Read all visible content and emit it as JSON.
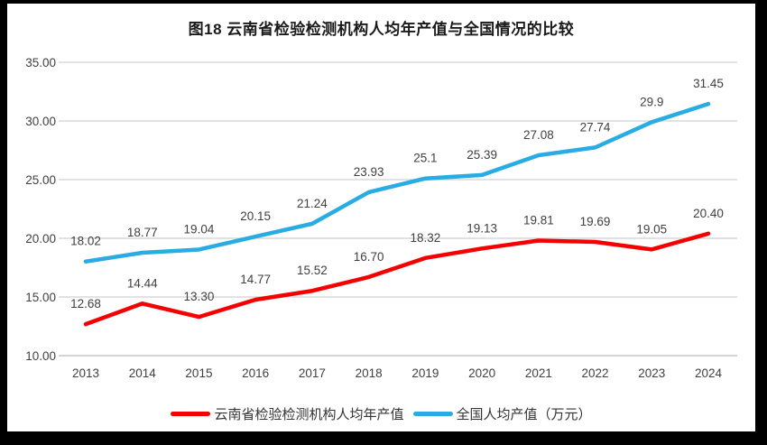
{
  "frame": {
    "background_color": "#000000",
    "card_background_color": "#FFFFFF"
  },
  "chart_data": {
    "type": "line",
    "title": "图18  云南省检验检测机构人均年产值与全国情况的比较",
    "categories": [
      "2013",
      "2014",
      "2015",
      "2016",
      "2017",
      "2018",
      "2019",
      "2020",
      "2021",
      "2022",
      "2023",
      "2024"
    ],
    "series": [
      {
        "key": "yunnan",
        "name": "云南省检验检测机构人均年产值",
        "color": "#F40000",
        "values": [
          12.68,
          14.44,
          13.3,
          14.77,
          15.52,
          16.7,
          18.32,
          19.13,
          19.81,
          19.69,
          19.05,
          20.4
        ],
        "labels": [
          "12.68",
          "14.44",
          "13.30",
          "14.77",
          "15.52",
          "16.70",
          "18.32",
          "19.13",
          "19.81",
          "19.69",
          "19.05",
          "20.40"
        ]
      },
      {
        "key": "national",
        "name": "全国人均产值（万元）",
        "color": "#29ACE3",
        "values": [
          18.02,
          18.77,
          19.04,
          20.15,
          21.24,
          23.93,
          25.1,
          25.39,
          27.08,
          27.74,
          29.9,
          31.45
        ],
        "labels": [
          "18.02",
          "18.77",
          "19.04",
          "20.15",
          "21.24",
          "23.93",
          "25.1",
          "25.39",
          "27.08",
          "27.74",
          "29.9",
          "31.45"
        ]
      }
    ],
    "xlabel": "",
    "ylabel": "",
    "ylim": [
      10,
      35
    ],
    "ytick_values": [
      35,
      30,
      25,
      20,
      15,
      10
    ],
    "ytick_labels": [
      "35.00",
      "30.00",
      "25.00",
      "20.00",
      "15.00",
      "10.00"
    ],
    "grid": "horizontal-only",
    "legend_position": "bottom-center",
    "colors": {
      "gridline": "#D9D9D9",
      "bottom_gridline": "#C6C6C6",
      "tick_text": "#404040",
      "data_label_text": "#3F3F3F"
    }
  }
}
